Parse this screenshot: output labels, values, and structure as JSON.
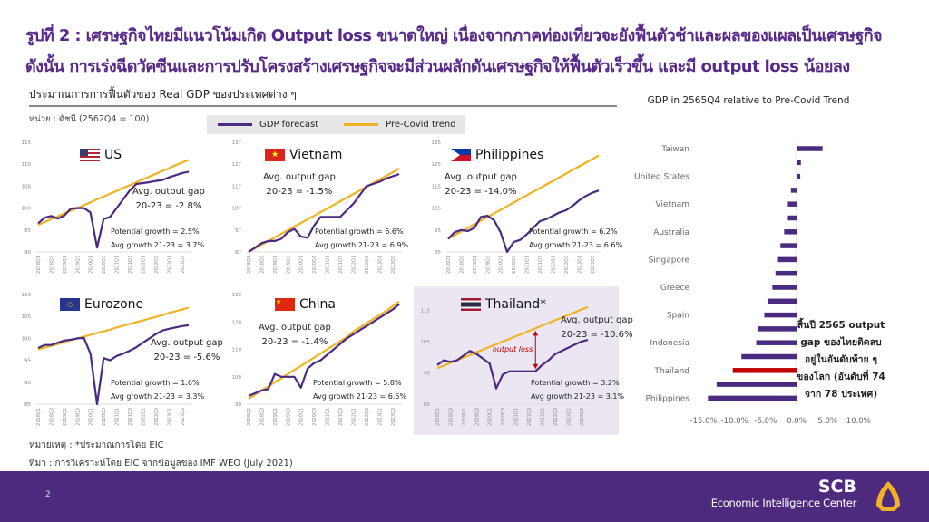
{
  "headline": {
    "line1": "รูปที่ 2 : เศรษฐกิจไทยมีแนวโน้มเกิด Output loss ขนาดใหญ่ เนื่องจากภาคท่องเที่ยวจะยังฟื้นตัวช้าและผลของแผลเป็นเศรษฐกิจ",
    "line2": "ดังนั้น การเร่งฉีดวัคซีนและการปรับโครงสร้างเศรษฐกิจจะมีส่วนผลักดันเศรษฐกิจให้ฟื้นตัวเร็วขึ้น และมี output loss น้อยลง"
  },
  "left_section": {
    "title": "ประมาณการการฟื้นตัวของ Real GDP ของประเทศต่าง ๆ",
    "unit": "หน่วย : ดัชนี (2562Q4 = 100)",
    "legend": [
      {
        "label": "GDP forecast",
        "color": "#4b2a82"
      },
      {
        "label": "Pre-Covid trend",
        "color": "#f0b323"
      }
    ]
  },
  "colors": {
    "forecast": "#4b2a82",
    "trend": "#f0b323",
    "highlight": "#c00000",
    "footer": "#4e2a7e",
    "title": "#55288a"
  },
  "chart_data": [
    {
      "type": "line",
      "title": "US",
      "flag": "us-flag-icon",
      "x": [
        "2018Q1",
        "2018Q2",
        "2018Q3",
        "2018Q4",
        "2019Q1",
        "2019Q2",
        "2019Q3",
        "2019Q4",
        "2020Q1",
        "2020Q2",
        "2020Q3",
        "2020Q4",
        "2021Q1",
        "2021Q2",
        "2021Q3",
        "2021Q4",
        "2022Q1",
        "2022Q2",
        "2022Q3",
        "2022Q4",
        "2023Q1",
        "2023Q2",
        "2023Q3",
        "2023Q4"
      ],
      "xticks": [
        "2018Q1",
        "2018Q3",
        "2019Q1",
        "2019Q3",
        "2020Q1",
        "2020Q3",
        "2021Q1",
        "2021Q3",
        "2022Q1",
        "2022Q3",
        "2023Q1",
        "2023Q3"
      ],
      "yticks": [
        90,
        95,
        100,
        105,
        110,
        115
      ],
      "ylim": [
        90,
        115
      ],
      "series": [
        {
          "name": "GDP forecast",
          "values": [
            96.5,
            97.8,
            98.2,
            97.6,
            98.3,
            99.9,
            100,
            100,
            99,
            91,
            97.5,
            98,
            100,
            102,
            104,
            105.5,
            105.7,
            105.9,
            106.2,
            106.4,
            107,
            107.5,
            108,
            108.3
          ]
        },
        {
          "name": "Pre-Covid trend",
          "values": [
            96.2,
            96.8,
            97.5,
            98.1,
            98.8,
            99.4,
            100,
            100.7,
            101.3,
            102,
            102.6,
            103.3,
            103.9,
            104.6,
            105.2,
            105.9,
            106.5,
            107.2,
            107.8,
            108.5,
            109.1,
            109.8,
            110.4,
            111
          ]
        }
      ],
      "gap_label": "Avg. output gap",
      "gap_value": "20-23 = -2.8%",
      "potential": "Potential growth = 2.5%",
      "avg_growth": "Avg growth 21-23 = 3.7%"
    },
    {
      "type": "line",
      "title": "Vietnam",
      "flag": "vietnam-flag-icon",
      "xticks": [
        "2018Q1",
        "2018Q3",
        "2019Q1",
        "2019Q3",
        "2020Q1",
        "2020Q3",
        "2021Q1",
        "2021Q3",
        "2022Q1",
        "2022Q3",
        "2023Q1",
        "2023Q3"
      ],
      "yticks": [
        87,
        97,
        107,
        117,
        127,
        137
      ],
      "ylim": [
        87,
        137
      ],
      "series": [
        {
          "name": "GDP forecast",
          "values": [
            87,
            89,
            91,
            92,
            92,
            93,
            96,
            97.5,
            94,
            93.5,
            99,
            103,
            103,
            103,
            103,
            106,
            109,
            113,
            117,
            118,
            119,
            120.5,
            121.5,
            122.5
          ]
        },
        {
          "name": "Pre-Covid trend",
          "values": [
            87,
            88.7,
            90.3,
            92,
            93.6,
            95.3,
            96.9,
            98.6,
            100.2,
            101.9,
            103.5,
            105.2,
            106.8,
            108.5,
            110.1,
            111.8,
            113.4,
            115.1,
            116.7,
            118.4,
            120,
            121.7,
            123.3,
            125
          ]
        }
      ],
      "gap_label": "Avg. output gap",
      "gap_value": "20-23 = -1.5%",
      "potential": "Potential growth = 6.6%",
      "avg_growth": "Avg growth 21-23 = 6.9%"
    },
    {
      "type": "line",
      "title": "Philippines",
      "flag": "philippines-flag-icon",
      "xticks": [
        "2018Q1",
        "2018Q3",
        "2019Q1",
        "2019Q3",
        "2020Q1",
        "2020Q3",
        "2021Q1",
        "2021Q3",
        "2022Q1",
        "2022Q3",
        "2023Q1",
        "2023Q3"
      ],
      "yticks": [
        85,
        95,
        105,
        115,
        125,
        135
      ],
      "ylim": [
        85,
        135
      ],
      "series": [
        {
          "name": "GDP forecast",
          "values": [
            91,
            94,
            95,
            94.5,
            96,
            101,
            101.5,
            99.5,
            94,
            85,
            89.5,
            90.5,
            93,
            96,
            99,
            100,
            101.5,
            103,
            104,
            106,
            108.5,
            110.5,
            112,
            113
          ]
        },
        {
          "name": "Pre-Covid trend",
          "values": [
            91,
            92.7,
            94.3,
            96,
            97.6,
            99.3,
            100.9,
            102.6,
            104.2,
            105.9,
            107.5,
            109.2,
            110.8,
            112.5,
            114.1,
            115.8,
            117.4,
            119.1,
            120.7,
            122.4,
            124,
            125.7,
            127.3,
            129
          ]
        }
      ],
      "gap_label": "Avg. output gap",
      "gap_value": "20-23 = -14.0%",
      "potential": "Potential growth = 6.2%",
      "avg_growth": "Avg growth 21-23 = 6.6%"
    },
    {
      "type": "line",
      "title": "Eurozone",
      "flag": "eu-flag-icon",
      "xticks": [
        "2018Q1",
        "2018Q3",
        "2019Q1",
        "2019Q3",
        "2020Q1",
        "2020Q3",
        "2021Q1",
        "2021Q3",
        "2022Q1",
        "2022Q3",
        "2023Q1",
        "2023Q3"
      ],
      "yticks": [
        85,
        90,
        95,
        100,
        105,
        110
      ],
      "ylim": [
        85,
        110
      ],
      "series": [
        {
          "name": "GDP forecast",
          "values": [
            97.8,
            98.5,
            98.5,
            99,
            99.5,
            99.7,
            100,
            100.1,
            96.5,
            85,
            95.5,
            95,
            96,
            96.5,
            97.2,
            98,
            99,
            100,
            101,
            101.8,
            102.2,
            102.5,
            102.8,
            103
          ]
        },
        {
          "name": "Pre-Covid trend",
          "values": [
            97.5,
            97.9,
            98.3,
            98.7,
            99.2,
            99.6,
            100,
            100.4,
            100.8,
            101.2,
            101.6,
            102,
            102.5,
            102.9,
            103.3,
            103.7,
            104.1,
            104.5,
            104.9,
            105.3,
            105.8,
            106.2,
            106.6,
            107
          ]
        }
      ],
      "gap_label": "Avg. output gap",
      "gap_value": "20-23 = -5.6%",
      "potential": "Potential growth = 1.6%",
      "avg_growth": "Avg growth 21-23 = 3.3%"
    },
    {
      "type": "line",
      "title": "China",
      "flag": "china-flag-icon",
      "xticks": [
        "2018Q1",
        "2018Q3",
        "2019Q1",
        "2019Q3",
        "2020Q1",
        "2020Q3",
        "2021Q1",
        "2021Q3",
        "2022Q1",
        "2022Q3",
        "2023Q1",
        "2023Q3"
      ],
      "yticks": [
        90,
        100,
        110,
        120,
        130
      ],
      "ylim": [
        90,
        130
      ],
      "series": [
        {
          "name": "GDP forecast",
          "values": [
            93,
            94,
            95,
            95.5,
            101,
            100,
            100,
            100,
            96,
            103,
            105,
            106,
            108,
            110,
            112,
            114,
            115.5,
            117,
            118.5,
            120,
            121.5,
            123,
            124.5,
            126.5
          ]
        },
        {
          "name": "Pre-Covid trend",
          "values": [
            92,
            93.5,
            95,
            96.5,
            98,
            99.5,
            101,
            102.5,
            104,
            105.5,
            107,
            108.5,
            110,
            111.5,
            113,
            114.5,
            116.5,
            118,
            119.5,
            121,
            122.5,
            124,
            125.7,
            127.5
          ]
        }
      ],
      "gap_label": "Avg. output gap",
      "gap_value": "20-23 = -1.4%",
      "potential": "Potential growth = 5.8%",
      "avg_growth": "Avg growth 21-23 = 6.5%"
    },
    {
      "type": "line",
      "title": "Thailand*",
      "flag": "thailand-flag-icon",
      "highlighted": true,
      "xticks": [
        "2018Q1",
        "2018Q3",
        "2019Q1",
        "2019Q3",
        "2020Q1",
        "2020Q3",
        "2021Q1",
        "2021Q3",
        "2022Q1",
        "2022Q3",
        "2023Q1",
        "2023Q3"
      ],
      "yticks": [
        85,
        95,
        105,
        115
      ],
      "ylim": [
        85,
        120
      ],
      "series": [
        {
          "name": "GDP forecast",
          "values": [
            97.5,
            99,
            98.5,
            99,
            100.5,
            102,
            101,
            99.5,
            98,
            90,
            94.5,
            95.5,
            95.5,
            95.5,
            95.5,
            95.5,
            97.5,
            99,
            101,
            102,
            103,
            104,
            105,
            105.5
          ]
        },
        {
          "name": "Pre-Covid trend",
          "values": [
            96.5,
            97.3,
            98.2,
            99,
            99.9,
            100.7,
            101.6,
            102.4,
            103.3,
            104.1,
            105,
            105.8,
            106.7,
            107.5,
            108.4,
            109.2,
            110.1,
            110.9,
            111.8,
            112.6,
            113.5,
            114.3,
            115.2,
            116
          ]
        }
      ],
      "annotation": {
        "label": "output loss",
        "at": "2021Q4"
      },
      "gap_label": "Avg. output gap",
      "gap_value": "20-23 = -10.6%",
      "potential": "Potential growth = 3.2%",
      "avg_growth": "Avg growth 21-23 = 3.1%"
    },
    {
      "type": "bar",
      "orientation": "horizontal",
      "title": "GDP in 2565Q4 relative to Pre-Covid Trend",
      "categories": [
        "Taiwan",
        "",
        "United States",
        "",
        "Vietnam",
        "",
        "Australia",
        "",
        "Singapore",
        "",
        "Greece",
        "",
        "Spain",
        "",
        "Indonesia",
        "",
        "Thailand",
        "",
        "Philippines"
      ],
      "values": [
        4.2,
        0.7,
        0.6,
        -0.9,
        -1.4,
        -1.4,
        -2.0,
        -2.6,
        -3.0,
        -3.4,
        -3.9,
        -4.6,
        -5.2,
        -6.3,
        -6.5,
        -8.9,
        -10.3,
        -12.9,
        -14.3
      ],
      "highlight": "Thailand",
      "xticks": [
        "-15.0%",
        "-10.0%",
        "-5.0%",
        "0.0%",
        "5.0%",
        "10.0%"
      ],
      "xlim": [
        -15,
        10
      ],
      "annotation": [
        "สิ้นปี 2565 output",
        "gap ของไทยติดลบ",
        "อยู่ในอันดับท้าย ๆ",
        "ของโลก (อันดับที่ 74",
        "จาก 78 ประเทศ)"
      ]
    }
  ],
  "notes": {
    "remark": "หมายเหตุ : *ประมาณการโดย EIC",
    "source": "ที่มา : การวิเคราะห์โดย EIC จากข้อมูลของ IMF WEO (July 2021)"
  },
  "footer": {
    "page": "2",
    "brand": "SCB",
    "org": "Economic Intelligence Center",
    "logo": "scb-logo-icon"
  }
}
